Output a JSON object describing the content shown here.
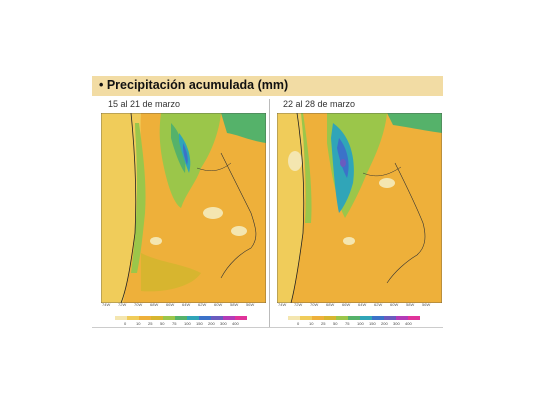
{
  "header": {
    "title": "• Precipitación acumulada (mm)"
  },
  "maps": [
    {
      "period": "15 al 21 de marzo",
      "lon_ticks": [
        "74W",
        "72W",
        "70W",
        "68W",
        "66W",
        "64W",
        "62W",
        "60W",
        "58W",
        "56W",
        "54W"
      ]
    },
    {
      "period": "22 al 28 de marzo",
      "lon_ticks": [
        "74W",
        "72W",
        "70W",
        "68W",
        "66W",
        "64W",
        "62W",
        "60W",
        "58W",
        "56W",
        "54W"
      ]
    }
  ],
  "legend_left": {
    "labels": [
      "0",
      "10",
      "25",
      "50",
      "75",
      "100",
      "150",
      "200",
      "300",
      "400"
    ],
    "colors": [
      "#f4e6b0",
      "#f0cc5a",
      "#eeb03a",
      "#d7b52f",
      "#9bc64a",
      "#55b26a",
      "#30a5b8",
      "#3b72c9",
      "#6a5bbf",
      "#b33bb8",
      "#e0339a"
    ]
  },
  "legend_right": {
    "labels": [
      "0",
      "10",
      "25",
      "50",
      "75",
      "100",
      "150",
      "200",
      "300",
      "400"
    ],
    "colors": [
      "#f4e6b0",
      "#f0cc5a",
      "#eeb03a",
      "#d7b52f",
      "#9bc64a",
      "#55b26a",
      "#30a5b8",
      "#3b72c9",
      "#6a5bbf",
      "#b33bb8",
      "#e0339a"
    ]
  }
}
